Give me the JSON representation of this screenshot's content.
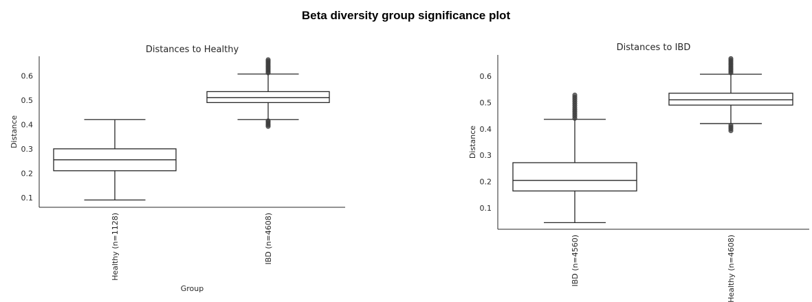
{
  "figure_title": "Beta diversity group significance plot",
  "chart_data": [
    {
      "type": "box",
      "title": "Distances to Healthy",
      "xlabel": "Group",
      "ylabel": "Distance",
      "ylim": [
        0.06,
        0.68
      ],
      "yticks": [
        0.1,
        0.2,
        0.3,
        0.4,
        0.5,
        0.6
      ],
      "categories": [
        "Healthy (n=1128)",
        "IBD (n=4608)"
      ],
      "boxes": [
        {
          "whisker_low": 0.09,
          "q1": 0.21,
          "median": 0.255,
          "q3": 0.3,
          "whisker_high": 0.42,
          "outliers_low": [],
          "outliers_high": []
        },
        {
          "whisker_low": 0.42,
          "q1": 0.49,
          "median": 0.51,
          "q3": 0.535,
          "whisker_high": 0.607,
          "outliers_low": [
            0.392,
            0.398,
            0.404,
            0.41,
            0.415
          ],
          "outliers_high": [
            0.612,
            0.618,
            0.624,
            0.63,
            0.636,
            0.642,
            0.648,
            0.654,
            0.66,
            0.666
          ]
        }
      ]
    },
    {
      "type": "box",
      "title": "Distances to IBD",
      "xlabel": "",
      "ylabel": "Distance",
      "ylim": [
        0.02,
        0.68
      ],
      "yticks": [
        0.1,
        0.2,
        0.3,
        0.4,
        0.5,
        0.6
      ],
      "categories": [
        "IBD (n=4560)",
        "Healthy (n=4608)"
      ],
      "boxes": [
        {
          "whisker_low": 0.045,
          "q1": 0.165,
          "median": 0.205,
          "q3": 0.272,
          "whisker_high": 0.436,
          "outliers_low": [],
          "outliers_high": [
            0.44,
            0.448,
            0.456,
            0.464,
            0.472,
            0.48,
            0.488,
            0.496,
            0.504,
            0.512,
            0.52,
            0.528
          ]
        },
        {
          "whisker_low": 0.42,
          "q1": 0.49,
          "median": 0.51,
          "q3": 0.535,
          "whisker_high": 0.607,
          "outliers_low": [
            0.393,
            0.4,
            0.407,
            0.414
          ],
          "outliers_high": [
            0.612,
            0.618,
            0.624,
            0.63,
            0.636,
            0.642,
            0.648,
            0.654,
            0.66,
            0.666
          ]
        }
      ]
    }
  ]
}
